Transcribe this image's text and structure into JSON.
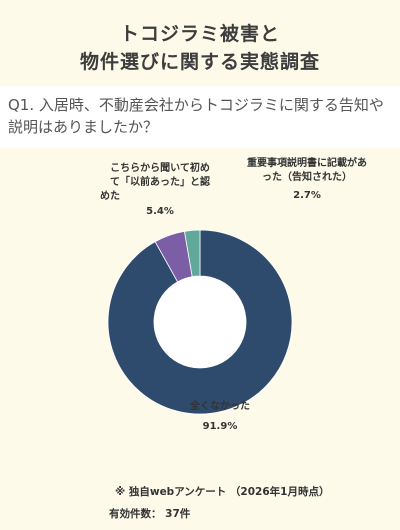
{
  "title_lines": [
    "トコジラミ被害と",
    "物件選びに関する実態調査"
  ],
  "question": "Q1. 入居時、不動産会社からトコジラミに関する告知や説明はありましたか？",
  "chart_data": {
    "type": "pie",
    "style": "donut",
    "slices": [
      {
        "label": "全くなかった",
        "value": 91.9,
        "value_label": "91.9%",
        "color": "#2e4b6e"
      },
      {
        "label": "こちらから聞いて初めて「以前あった」と認めた",
        "value": 5.4,
        "value_label": "5.4%",
        "color": "#7b5ea6"
      },
      {
        "label": "重要事項説明書に記載があった（告知された）",
        "value": 2.7,
        "value_label": "2.7%",
        "color": "#5fa89a"
      }
    ],
    "start_angle_deg": 0,
    "direction": "clockwise"
  },
  "labels": {
    "lbl_a_line1": "こちらから聞いて初め",
    "lbl_a_line2": "て「以前あった」と認",
    "lbl_a_line3": "めた",
    "lbl_a_value": "5.4%",
    "lbl_b_line1": "重要事項説明書に記載があ",
    "lbl_b_line2": "った（告知された）",
    "lbl_b_value": "2.7%",
    "lbl_c_line1": "全くなかった",
    "lbl_c_value": "91.9%"
  },
  "footnote": {
    "source": "※ 独自webアンケート （2026年1月時点）",
    "count": "有効件数： 37件"
  }
}
